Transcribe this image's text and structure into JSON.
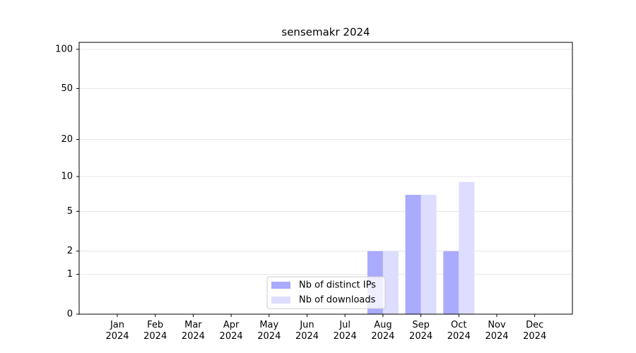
{
  "chart_data": {
    "type": "bar",
    "title": "sensemakr 2024",
    "categories": [
      "Jan 2024",
      "Feb 2024",
      "Mar 2024",
      "Apr 2024",
      "May 2024",
      "Jun 2024",
      "Jul 2024",
      "Aug 2024",
      "Sep 2024",
      "Oct 2024",
      "Nov 2024",
      "Dec 2024"
    ],
    "series": [
      {
        "name": "Nb of distinct IPs",
        "color": "#aaaaff",
        "values": [
          0,
          0,
          0,
          0,
          0,
          0,
          0,
          2,
          7,
          2,
          0,
          0
        ]
      },
      {
        "name": "Nb of downloads",
        "color": "#ddddff",
        "values": [
          0,
          0,
          0,
          0,
          0,
          0,
          0,
          2,
          7,
          9,
          0,
          0
        ]
      }
    ],
    "yscale": "log1p",
    "ylim": [
      0,
      113
    ],
    "yticks": [
      0,
      1,
      2,
      5,
      10,
      20,
      50,
      100
    ],
    "grid": true,
    "legend": "lower center"
  }
}
